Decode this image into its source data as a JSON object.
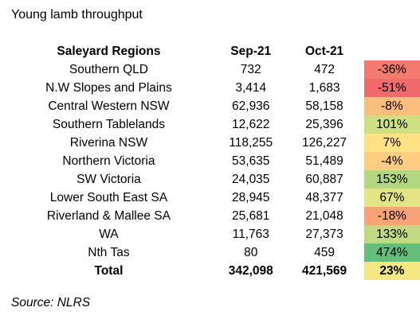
{
  "title": "Young lamb throughput",
  "headers": {
    "region": "Saleyard Regions",
    "sep": "Sep-21",
    "oct": "Oct-21"
  },
  "rows": [
    {
      "region": "Southern QLD",
      "sep": "732",
      "oct": "472",
      "change": "-36%",
      "color": "#f47a6f"
    },
    {
      "region": "N.W Slopes and Plains",
      "sep": "3,414",
      "oct": "1,683",
      "change": "-51%",
      "color": "#f0696c"
    },
    {
      "region": "Central Western NSW",
      "sep": "62,936",
      "oct": "58,158",
      "change": "-8%",
      "color": "#fbbd7c"
    },
    {
      "region": "Southern Tablelands",
      "sep": "12,622",
      "oct": "25,396",
      "change": "101%",
      "color": "#cfe082"
    },
    {
      "region": "Riverina NSW",
      "sep": "118,255",
      "oct": "126,227",
      "change": "7%",
      "color": "#fee283"
    },
    {
      "region": "Northern Victoria",
      "sep": "53,635",
      "oct": "51,489",
      "change": "-4%",
      "color": "#fecd80"
    },
    {
      "region": "SW Victoria",
      "sep": "24,035",
      "oct": "60,887",
      "change": "153%",
      "color": "#b3d680"
    },
    {
      "region": "Lower South East SA",
      "sep": "28,945",
      "oct": "48,377",
      "change": "67%",
      "color": "#e3e483"
    },
    {
      "region": "Riverland & Mallee SA",
      "sep": "25,681",
      "oct": "21,048",
      "change": "-18%",
      "color": "#f9a277"
    },
    {
      "region": "WA",
      "sep": "11,763",
      "oct": "27,373",
      "change": "133%",
      "color": "#bfda81"
    },
    {
      "region": "Nth Tas",
      "sep": "80",
      "oct": "459",
      "change": "474%",
      "color": "#63be7b"
    }
  ],
  "total": {
    "region": "Total",
    "sep": "342,098",
    "oct": "421,569",
    "change": "23%",
    "color": "#f5e884"
  },
  "source": "Source: NLRS"
}
